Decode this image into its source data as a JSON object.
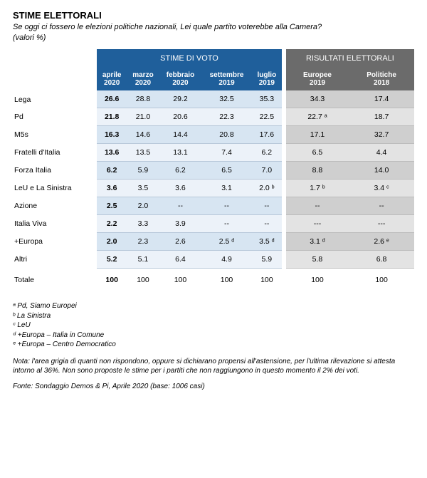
{
  "colors": {
    "stime_header_bg": "#1f5f9b",
    "stime_col_bg": "#d7e5f2",
    "stime_row_alt_bg": "#ecf2f9",
    "risultati_header_bg": "#6b6b6b",
    "risultati_col_bg": "#cfcfcf",
    "risultati_row_alt_bg": "#e3e3e3",
    "row_border": "#b8c8da",
    "row_border_gray": "#bcbcbc",
    "text": "#000000",
    "bg": "#ffffff"
  },
  "title": "STIME ELETTORALI",
  "subtitle": "Se oggi ci fossero le elezioni politiche nazionali, Lei quale partito voterebbe alla Camera?",
  "subtitle2": "(valori %)",
  "group_headers": {
    "stime": "STIME DI VOTO",
    "risultati": "RISULTATI ELETTORALI"
  },
  "columns": {
    "stime": [
      "aprile 2020",
      "marzo 2020",
      "febbraio 2020",
      "settembre 2019",
      "luglio 2019"
    ],
    "risultati": [
      "Europee 2019",
      "Politiche 2018"
    ]
  },
  "rows": [
    {
      "party": "Lega",
      "stime": [
        "26.6",
        "28.8",
        "29.2",
        "32.5",
        "35.3"
      ],
      "risultati": [
        "34.3",
        "17.4"
      ]
    },
    {
      "party": "Pd",
      "stime": [
        "21.8",
        "21.0",
        "20.6",
        "22.3",
        "22.5"
      ],
      "risultati": [
        "22.7 ᵃ",
        "18.7"
      ]
    },
    {
      "party": "M5s",
      "stime": [
        "16.3",
        "14.6",
        "14.4",
        "20.8",
        "17.6"
      ],
      "risultati": [
        "17.1",
        "32.7"
      ]
    },
    {
      "party": "Fratelli d'Italia",
      "stime": [
        "13.6",
        "13.5",
        "13.1",
        "7.4",
        "6.2"
      ],
      "risultati": [
        "6.5",
        "4.4"
      ]
    },
    {
      "party": "Forza Italia",
      "stime": [
        "6.2",
        "5.9",
        "6.2",
        "6.5",
        "7.0"
      ],
      "risultati": [
        "8.8",
        "14.0"
      ]
    },
    {
      "party": "LeU e La Sinistra",
      "stime": [
        "3.6",
        "3.5",
        "3.6",
        "3.1",
        "2.0 ᵇ"
      ],
      "risultati": [
        "1.7 ᵇ",
        "3.4 ᶜ"
      ]
    },
    {
      "party": "Azione",
      "stime": [
        "2.5",
        "2.0",
        "--",
        "--",
        "--"
      ],
      "risultati": [
        "--",
        "--"
      ]
    },
    {
      "party": "Italia Viva",
      "stime": [
        "2.2",
        "3.3",
        "3.9",
        "--",
        "--"
      ],
      "risultati": [
        "---",
        "---"
      ]
    },
    {
      "party": "+Europa",
      "stime": [
        "2.0",
        "2.3",
        "2.6",
        "2.5 ᵈ",
        "3.5 ᵈ"
      ],
      "risultati": [
        "3.1 ᵈ",
        "2.6 ᵉ"
      ]
    },
    {
      "party": "Altri",
      "stime": [
        "5.2",
        "5.1",
        "6.4",
        "4.9",
        "5.9"
      ],
      "risultati": [
        "5.8",
        "6.8"
      ]
    }
  ],
  "total": {
    "party": "Totale",
    "stime": [
      "100",
      "100",
      "100",
      "100",
      "100"
    ],
    "risultati": [
      "100",
      "100"
    ]
  },
  "footnotes": [
    "ᵃ Pd, Siamo Europei",
    "ᵇ La Sinistra",
    "ᶜ LeU",
    "ᵈ +Europa – Italia in Comune",
    "ᵉ +Europa – Centro Democratico"
  ],
  "note": "Nota: l'area grigia di quanti non rispondono, oppure si dichiarano propensi all'astensione, per l'ultima rilevazione si attesta intorno al 36%. Non sono proposte le stime per i partiti che non raggiungono in questo momento il 2% dei voti.",
  "source": "Fonte: Sondaggio Demos & Pi, Aprile 2020 (base: 1006 casi)"
}
